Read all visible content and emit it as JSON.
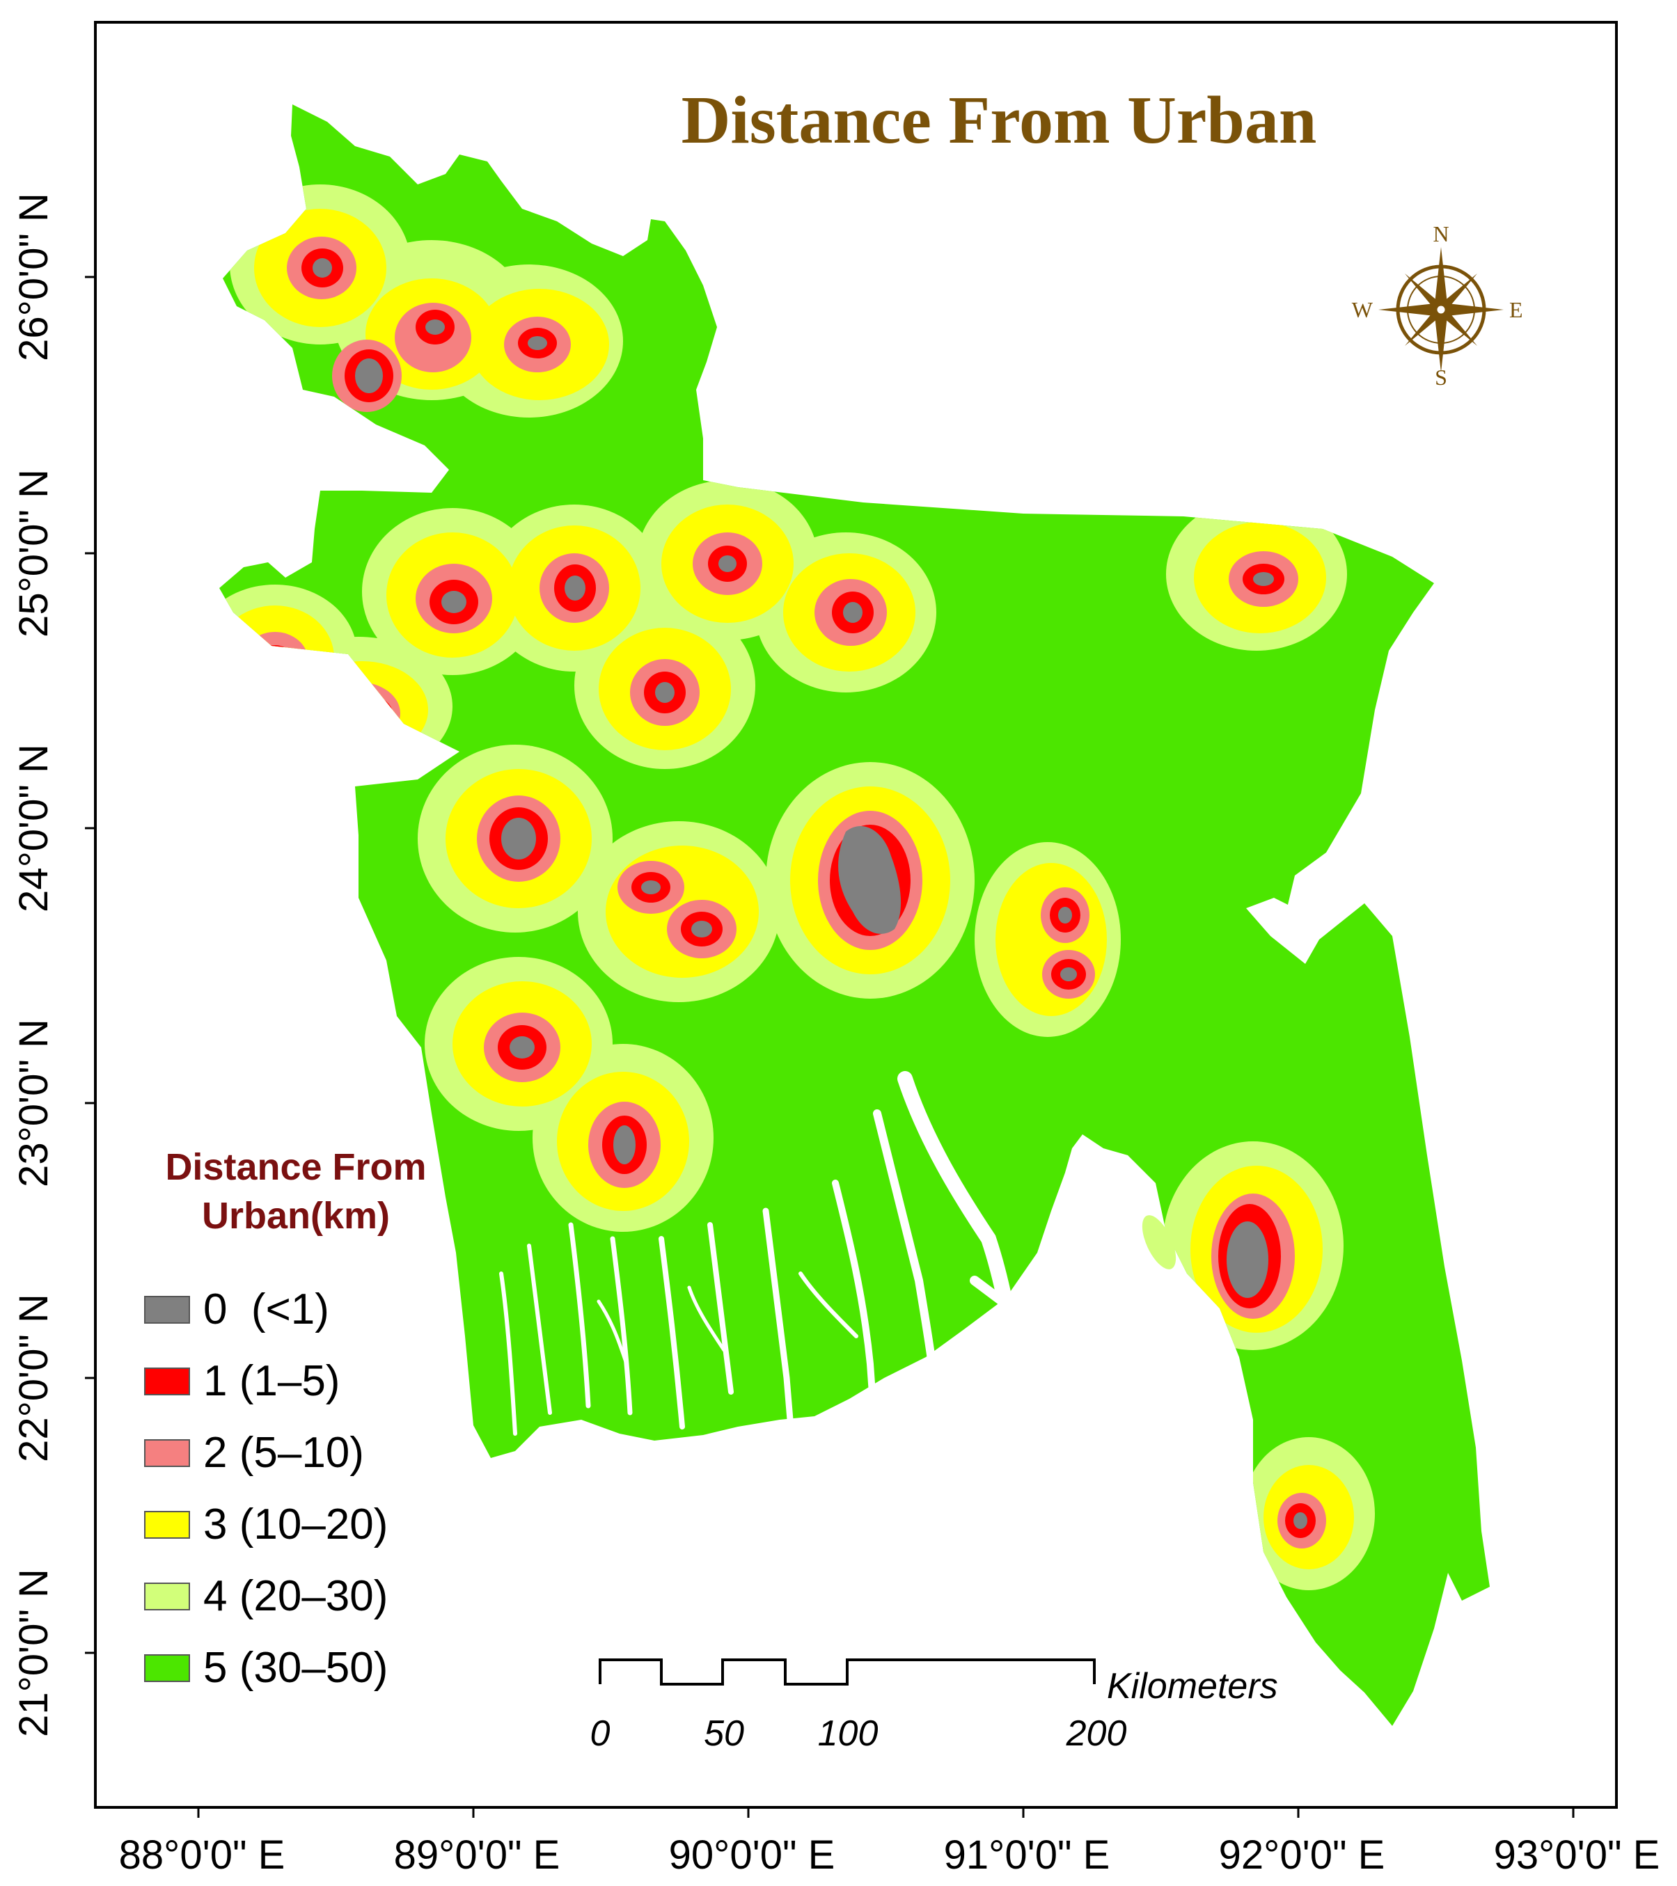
{
  "map": {
    "title": "Distance From Urban",
    "title_color": "#7a5209",
    "latitude_labels": [
      "21°0'0\" N",
      "22°0'0\" N",
      "23°0'0\" N",
      "24°0'0\" N",
      "25°0'0\" N",
      "26°0'0\" N"
    ],
    "longitude_labels": [
      "88°0'0\" E",
      "89°0'0\" E",
      "90°0'0\" E",
      "91°0'0\" E",
      "92°0'0\" E",
      "93°0'0\" E"
    ],
    "legend": {
      "title_line1": "Distance From",
      "title_line2": "Urban(km)",
      "title_color": "#7a1010",
      "items": [
        {
          "label": "0  (<1)",
          "color": "#808080"
        },
        {
          "label": "1 (1–5)",
          "color": "#ff0000"
        },
        {
          "label": "2 (5–10)",
          "color": "#f58080"
        },
        {
          "label": "3 (10–20)",
          "color": "#ffff00"
        },
        {
          "label": "4 (20–30)",
          "color": "#d2ff7a"
        },
        {
          "label": "5 (30–50)",
          "color": "#4ce600"
        }
      ]
    },
    "scale_bar": {
      "unit": "Kilometers",
      "ticks": [
        "0",
        "50",
        "100",
        "200"
      ]
    },
    "compass": {
      "n": "N",
      "s": "S",
      "e": "E",
      "w": "W",
      "icon": "compass-rose-icon",
      "color": "#7a5209"
    }
  }
}
